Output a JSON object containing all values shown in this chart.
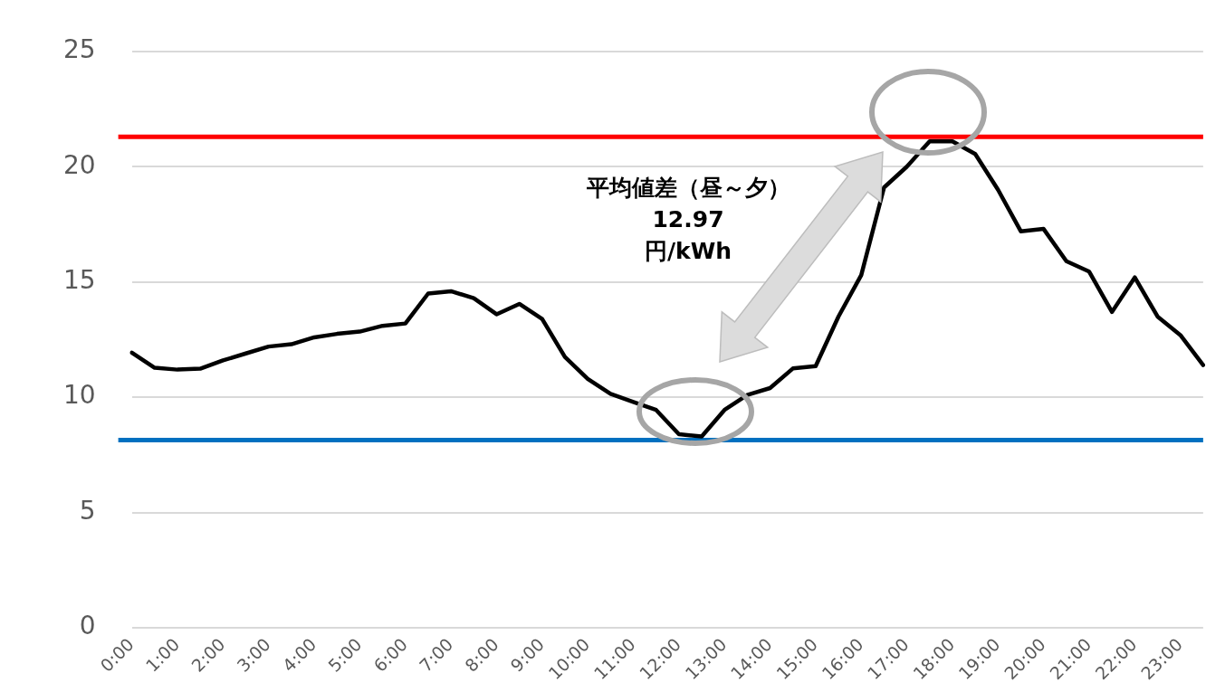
{
  "chart_data": {
    "type": "line",
    "categories": [
      "0:00",
      null,
      "1:00",
      null,
      "2:00",
      null,
      "3:00",
      null,
      "4:00",
      null,
      "5:00",
      null,
      "6:00",
      null,
      "7:00",
      null,
      "8:00",
      null,
      "9:00",
      null,
      "10:00",
      null,
      "11:00",
      null,
      "12:00",
      null,
      "13:00",
      null,
      "14:00",
      null,
      "15:00",
      null,
      "16:00",
      null,
      "17:00",
      null,
      "18:00",
      null,
      "19:00",
      null,
      "20:00",
      null,
      "21:00",
      null,
      "22:00",
      null,
      "23:00",
      null
    ],
    "series": [
      {
        "color": "#000000",
        "values": [
          11.94,
          11.28,
          11.2,
          11.24,
          11.6,
          11.9,
          12.2,
          12.3,
          12.6,
          12.75,
          12.85,
          13.1,
          13.2,
          14.5,
          14.6,
          14.3,
          13.6,
          14.05,
          13.4,
          11.75,
          10.8,
          10.15,
          9.8,
          9.45,
          8.4,
          8.3,
          9.45,
          10.1,
          10.4,
          11.25,
          11.35,
          13.5,
          15.3,
          19.1,
          20.0,
          21.1,
          21.1,
          20.55,
          19.0,
          17.2,
          17.3,
          15.9,
          15.45,
          13.7,
          15.2,
          13.5,
          12.7,
          11.4
        ]
      }
    ],
    "ylim": [
      0,
      25
    ],
    "yticks": [
      0,
      5,
      10,
      15,
      20,
      25
    ],
    "grid": "y",
    "legend": false,
    "marker": "none",
    "line_style": "solid",
    "ref_lines": [
      {
        "axis": "y",
        "value": 21.3,
        "color": "#ff0000"
      },
      {
        "axis": "y",
        "value": 8.15,
        "color": "#0070c0"
      }
    ],
    "annotations": [
      "平均値差（昼～夕）\n12.97\n円/kWh"
    ]
  }
}
